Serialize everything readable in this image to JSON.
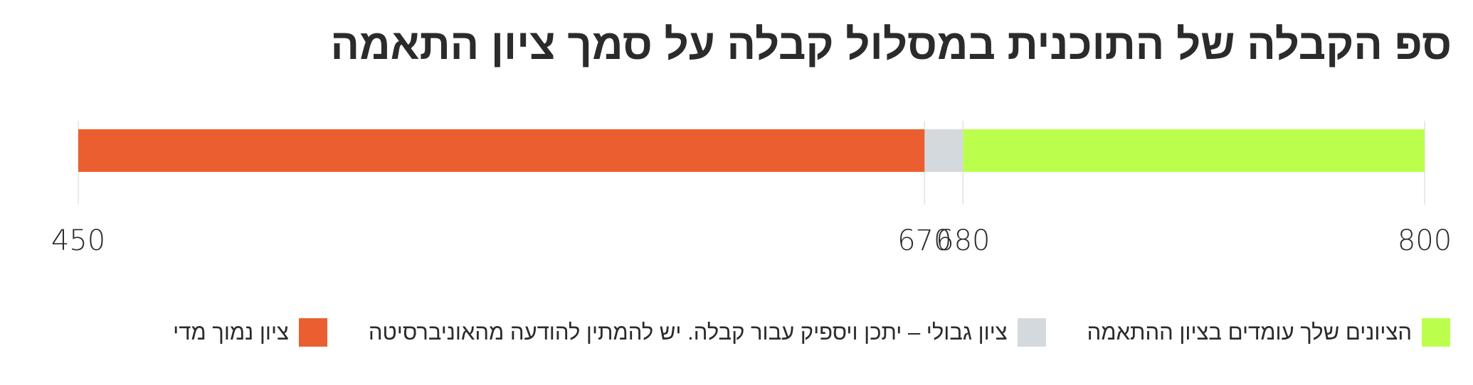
{
  "chart_data": {
    "type": "bar",
    "orientation": "horizontal",
    "stacked": true,
    "direction": "rtl",
    "title": "ספ הקבלה של התוכנית במסלול קבלה על סמך ציון התאמה",
    "xlim": [
      450,
      800
    ],
    "ticks": [
      "450",
      "670",
      "680",
      "800"
    ],
    "tick_values": [
      450,
      670,
      680,
      800
    ],
    "segments": [
      {
        "name": "הציונים שלך עומדים בציון ההתאמה",
        "from": 680,
        "to": 800,
        "color": "#bbff4c"
      },
      {
        "name": "ציון גבולי – יתכן ויספיק עבור קבלה. יש להמתין להודעה מהאוניברסיטה",
        "from": 670,
        "to": 680,
        "color": "#d4d9dd"
      },
      {
        "name": "ציון נמוך מדי",
        "from": 450,
        "to": 670,
        "color": "#eb5e2f"
      }
    ],
    "legend_position": "bottom",
    "grid": false
  }
}
